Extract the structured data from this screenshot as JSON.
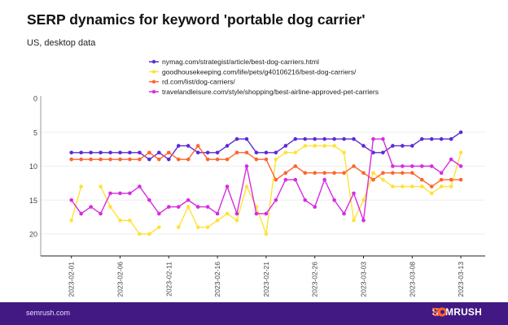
{
  "title": "SERP dynamics for keyword 'portable dog carrier'",
  "subtitle": "US, desktop data",
  "footer": {
    "site": "semrush.com",
    "logo": "SEMRUSH",
    "background": "#421983",
    "logo_accent": "#ff642d"
  },
  "chart_data": {
    "type": "line",
    "title": "SERP dynamics for keyword 'portable dog carrier'",
    "subtitle": "US, desktop data",
    "xlabel": "",
    "ylabel": "",
    "y_inverted": true,
    "ylim": [
      0,
      23
    ],
    "yticks": [
      0,
      5,
      10,
      15,
      20
    ],
    "x_start": "2023-02-01",
    "x_end": "2023-03-13",
    "xticks": [
      "2023-02-01",
      "2023-02-06",
      "2023-02-11",
      "2023-02-16",
      "2023-02-21",
      "2023-02-26",
      "2023-03-03",
      "2023-03-08",
      "2023-03-13"
    ],
    "grid": "horizontal",
    "legend_position": "top",
    "series": [
      {
        "name": "nymag.com/strategist/article/best-dog-carriers.html",
        "color": "#5b2bd6",
        "values": [
          8,
          8,
          8,
          8,
          8,
          8,
          8,
          8,
          9,
          8,
          9,
          7,
          7,
          8,
          8,
          8,
          7,
          6,
          6,
          8,
          8,
          8,
          7,
          6,
          6,
          6,
          6,
          6,
          6,
          6,
          7,
          8,
          8,
          7,
          7,
          7,
          6,
          6,
          6,
          6,
          5
        ]
      },
      {
        "name": "goodhousekeeping.com/life/pets/g40106216/best-dog-carriers/",
        "color": "#ffe236",
        "values": [
          18,
          13,
          null,
          13,
          16,
          18,
          18,
          20,
          20,
          19,
          null,
          19,
          16,
          19,
          19,
          18,
          17,
          18,
          13,
          16,
          20,
          9,
          8,
          8,
          7,
          7,
          7,
          7,
          8,
          18,
          15,
          11,
          12,
          13,
          13,
          13,
          13,
          14,
          13,
          13,
          8
        ]
      },
      {
        "name": "rd.com/list/dog-carriers/",
        "color": "#ff642d",
        "values": [
          9,
          9,
          9,
          9,
          9,
          9,
          9,
          9,
          8,
          9,
          8,
          9,
          9,
          7,
          9,
          9,
          9,
          8,
          8,
          9,
          9,
          12,
          11,
          10,
          11,
          11,
          11,
          11,
          11,
          10,
          11,
          12,
          11,
          11,
          11,
          11,
          12,
          13,
          12,
          12,
          12
        ]
      },
      {
        "name": "travelandleisure.com/style/shopping/best-airline-approved-pet-carriers",
        "color": "#d62be0",
        "values": [
          15,
          17,
          16,
          17,
          14,
          14,
          14,
          13,
          15,
          17,
          16,
          16,
          15,
          16,
          16,
          17,
          13,
          17,
          10,
          17,
          17,
          15,
          12,
          12,
          15,
          16,
          12,
          15,
          17,
          14,
          18,
          6,
          6,
          10,
          10,
          10,
          10,
          10,
          11,
          9,
          10
        ]
      }
    ]
  }
}
